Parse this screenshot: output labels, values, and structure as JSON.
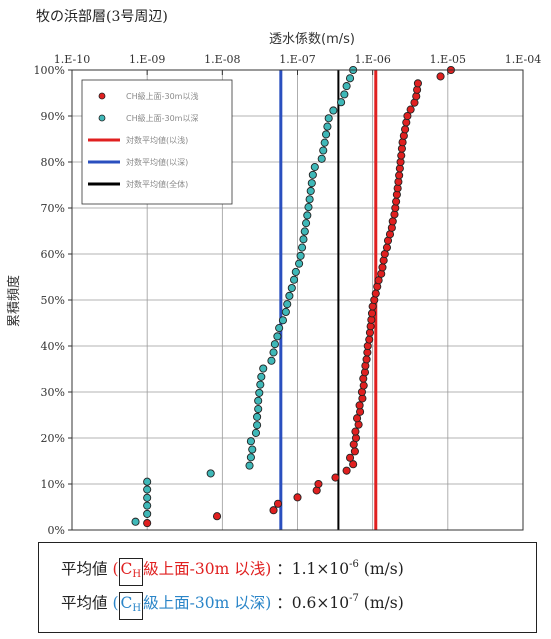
{
  "caption": "牧の浜部層(3号周辺)",
  "chart_data": {
    "type": "scatter",
    "x_scale": "log",
    "xlabel": "透水係数(m/s)",
    "ylabel": "累積頻度",
    "x_tick_labels": [
      "1.E-10",
      "1.E-09",
      "1.E-08",
      "1.E-07",
      "1.E-06",
      "1.E-05",
      "1.E-04"
    ],
    "y_tick_labels": [
      "0%",
      "10%",
      "20%",
      "30%",
      "40%",
      "50%",
      "60%",
      "70%",
      "80%",
      "90%",
      "100%"
    ],
    "xlim": [
      "1.E-10",
      "1.E-04"
    ],
    "ylim": [
      0,
      100
    ],
    "grid": true,
    "legend_position": "top-left",
    "series": [
      {
        "name": "CH級上面-30m以浅",
        "color": "#e02020",
        "marker": "circle",
        "points": [
          [
            1e-09,
            1.5
          ],
          [
            8.5e-09,
            3.0
          ],
          [
            4.8e-08,
            4.3
          ],
          [
            5.5e-08,
            5.7
          ],
          [
            1e-07,
            7.1
          ],
          [
            1.8e-07,
            8.6
          ],
          [
            1.9e-07,
            10.0
          ],
          [
            3.2e-07,
            11.4
          ],
          [
            4.5e-07,
            12.9
          ],
          [
            5.5e-07,
            14.3
          ],
          [
            5e-07,
            15.7
          ],
          [
            5.8e-07,
            17.1
          ],
          [
            5.6e-07,
            18.6
          ],
          [
            6e-07,
            20.0
          ],
          [
            5.9e-07,
            21.4
          ],
          [
            6.5e-07,
            22.9
          ],
          [
            6.2e-07,
            24.3
          ],
          [
            6.8e-07,
            25.7
          ],
          [
            6.7e-07,
            27.1
          ],
          [
            7.3e-07,
            28.6
          ],
          [
            7.2e-07,
            30.0
          ],
          [
            7.6e-07,
            31.4
          ],
          [
            7.5e-07,
            32.9
          ],
          [
            7.9e-07,
            34.3
          ],
          [
            8e-07,
            35.7
          ],
          [
            8.3e-07,
            37.1
          ],
          [
            8.5e-07,
            38.6
          ],
          [
            8.6e-07,
            40.0
          ],
          [
            9e-07,
            41.4
          ],
          [
            9.2e-07,
            42.9
          ],
          [
            9.4e-07,
            44.3
          ],
          [
            9.6e-07,
            45.7
          ],
          [
            9.8e-07,
            47.1
          ],
          [
            1e-06,
            48.6
          ],
          [
            1.05e-06,
            50.0
          ],
          [
            1.1e-06,
            51.4
          ],
          [
            1.15e-06,
            52.9
          ],
          [
            1.2e-06,
            54.3
          ],
          [
            1.3e-06,
            55.7
          ],
          [
            1.35e-06,
            57.1
          ],
          [
            1.4e-06,
            58.6
          ],
          [
            1.45e-06,
            60.0
          ],
          [
            1.55e-06,
            61.4
          ],
          [
            1.6e-06,
            62.9
          ],
          [
            1.7e-06,
            64.3
          ],
          [
            1.8e-06,
            65.7
          ],
          [
            1.85e-06,
            67.1
          ],
          [
            1.95e-06,
            68.6
          ],
          [
            2e-06,
            70.0
          ],
          [
            2.05e-06,
            71.4
          ],
          [
            2.1e-06,
            72.9
          ],
          [
            2.15e-06,
            74.3
          ],
          [
            2.2e-06,
            75.7
          ],
          [
            2.25e-06,
            77.1
          ],
          [
            2.3e-06,
            78.6
          ],
          [
            2.35e-06,
            80.0
          ],
          [
            2.4e-06,
            81.4
          ],
          [
            2.45e-06,
            82.9
          ],
          [
            2.5e-06,
            84.3
          ],
          [
            2.6e-06,
            85.7
          ],
          [
            2.7e-06,
            87.1
          ],
          [
            2.8e-06,
            88.6
          ],
          [
            2.9e-06,
            90.0
          ],
          [
            3.2e-06,
            91.4
          ],
          [
            3.6e-06,
            92.9
          ],
          [
            3.8e-06,
            94.3
          ],
          [
            3.9e-06,
            95.7
          ],
          [
            4e-06,
            97.1
          ],
          [
            8e-06,
            98.6
          ],
          [
            1.1e-05,
            100.0
          ]
        ]
      },
      {
        "name": "CH級上面-30m以深",
        "color": "#3fb8b8",
        "marker": "circle",
        "points": [
          [
            7e-10,
            1.8
          ],
          [
            1e-09,
            3.5
          ],
          [
            1e-09,
            5.3
          ],
          [
            1e-09,
            7.0
          ],
          [
            1e-09,
            8.8
          ],
          [
            1e-09,
            10.5
          ],
          [
            7e-09,
            12.3
          ],
          [
            2.3e-08,
            14.0
          ],
          [
            2.4e-08,
            15.8
          ],
          [
            2.5e-08,
            17.5
          ],
          [
            2.4e-08,
            19.3
          ],
          [
            2.8e-08,
            21.1
          ],
          [
            2.9e-08,
            22.8
          ],
          [
            2.9e-08,
            24.6
          ],
          [
            3e-08,
            26.3
          ],
          [
            3e-08,
            28.1
          ],
          [
            3.1e-08,
            29.8
          ],
          [
            3.2e-08,
            31.6
          ],
          [
            3.3e-08,
            33.3
          ],
          [
            3.5e-08,
            35.1
          ],
          [
            4.5e-08,
            36.8
          ],
          [
            4.8e-08,
            38.6
          ],
          [
            5e-08,
            40.4
          ],
          [
            5.4e-08,
            42.1
          ],
          [
            5.7e-08,
            43.9
          ],
          [
            6.4e-08,
            45.6
          ],
          [
            7e-08,
            47.4
          ],
          [
            7.3e-08,
            49.1
          ],
          [
            7.8e-08,
            50.9
          ],
          [
            8.4e-08,
            52.6
          ],
          [
            9e-08,
            54.4
          ],
          [
            9.5e-08,
            56.1
          ],
          [
            1.05e-07,
            57.9
          ],
          [
            1.1e-07,
            59.6
          ],
          [
            1.15e-07,
            61.4
          ],
          [
            1.2e-07,
            63.2
          ],
          [
            1.25e-07,
            64.9
          ],
          [
            1.3e-07,
            66.7
          ],
          [
            1.35e-07,
            68.4
          ],
          [
            1.4e-07,
            70.2
          ],
          [
            1.45e-07,
            71.9
          ],
          [
            1.5e-07,
            73.7
          ],
          [
            1.55e-07,
            75.4
          ],
          [
            1.6e-07,
            77.2
          ],
          [
            1.7e-07,
            78.9
          ],
          [
            2.1e-07,
            80.7
          ],
          [
            2.2e-07,
            82.5
          ],
          [
            2.3e-07,
            84.2
          ],
          [
            2.4e-07,
            86.0
          ],
          [
            2.5e-07,
            87.7
          ],
          [
            2.6e-07,
            89.5
          ],
          [
            3e-07,
            91.2
          ],
          [
            3.8e-07,
            93.0
          ],
          [
            4.2e-07,
            94.7
          ],
          [
            4.5e-07,
            96.5
          ],
          [
            5e-07,
            98.2
          ],
          [
            5.5e-07,
            100.0
          ]
        ]
      }
    ],
    "reference_lines": [
      {
        "name": "対数平均値(以浅)",
        "x": 1.1e-06,
        "color": "#e02020"
      },
      {
        "name": "対数平均値(以深)",
        "x": 6e-08,
        "color": "#2a4fbf"
      },
      {
        "name": "対数平均値(全体)",
        "x": 3.5e-07,
        "color": "#000000"
      }
    ]
  },
  "summary": {
    "line1": {
      "label": "平均値",
      "paren_open": "(",
      "c_letter": "C",
      "c_sub": "H",
      "desc": "級上面-30m 以浅",
      "paren_close": ")",
      "colon": "：",
      "mantissa": "1.1×10",
      "exponent": "-6",
      "unit": "(m/s)",
      "color": "#e02020"
    },
    "line2": {
      "label": "平均値",
      "paren_open": "(",
      "c_letter": "C",
      "c_sub": "H",
      "desc": "級上面-30m 以深",
      "paren_close": ")",
      "colon": "：",
      "mantissa": "0.6×10",
      "exponent": "-7",
      "unit": "(m/s)",
      "color": "#2a85c8"
    }
  }
}
